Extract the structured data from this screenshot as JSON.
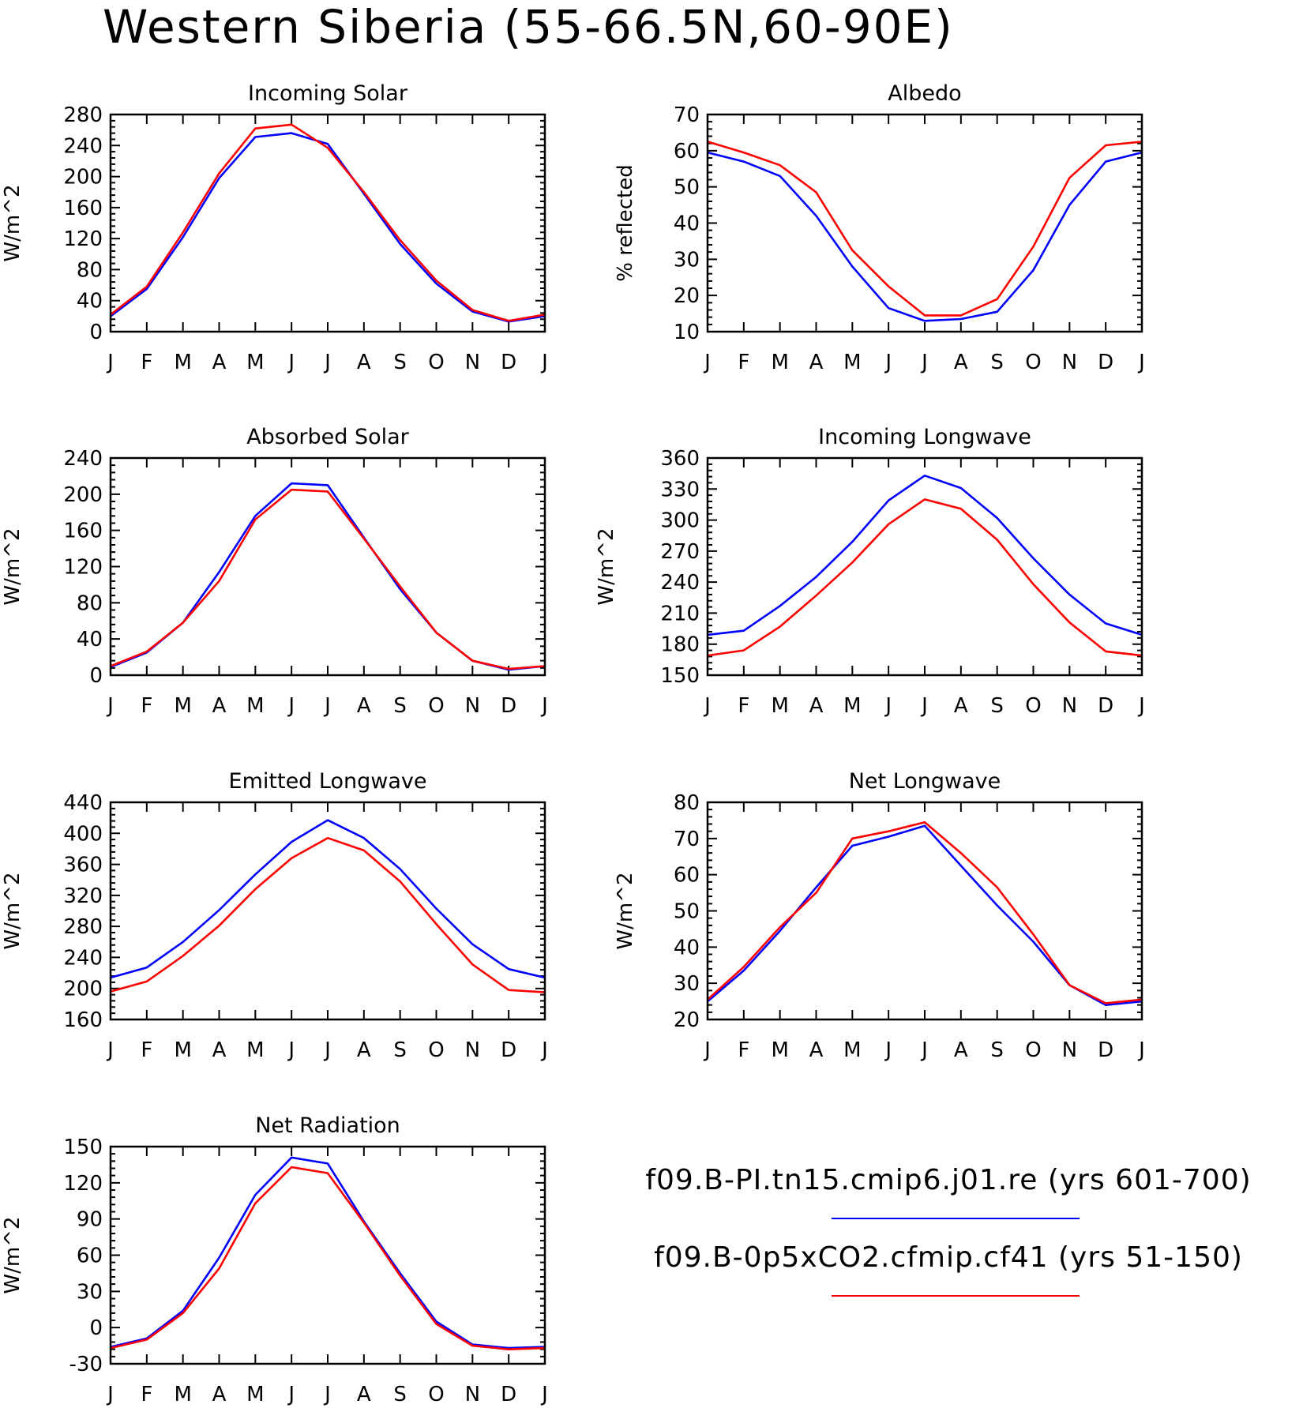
{
  "title": "Western Siberia (55-66.5N,60-90E)",
  "colors": {
    "series_pi": "#0000ff",
    "series_co2": "#ff0000",
    "axes": "#000000"
  },
  "legend": {
    "entries": [
      {
        "label": "f09.B-PI.tn15.cmip6.j01.re (yrs 601-700)",
        "color": "#0000ff"
      },
      {
        "label": "f09.B-0p5xCO2.cfmip.cf41 (yrs 51-150)",
        "color": "#ff0000"
      }
    ]
  },
  "chart_data": [
    {
      "type": "line",
      "title": "Incoming Solar",
      "ylabel": "W/m^2",
      "xlabel": "",
      "categories": [
        "J",
        "F",
        "M",
        "A",
        "M",
        "J",
        "J",
        "A",
        "S",
        "O",
        "N",
        "D",
        "J"
      ],
      "ylim": [
        0,
        280
      ],
      "yticks": [
        0,
        40,
        80,
        120,
        160,
        200,
        240,
        280
      ],
      "series": [
        {
          "color": "#0000ff",
          "values": [
            20,
            55,
            122,
            198,
            251,
            256,
            242,
            178,
            113,
            62,
            26,
            13,
            20
          ]
        },
        {
          "color": "#ff0000",
          "values": [
            22,
            58,
            128,
            204,
            262,
            267,
            237,
            180,
            118,
            66,
            28,
            14,
            22
          ]
        }
      ]
    },
    {
      "type": "line",
      "title": "Albedo",
      "ylabel": "% reflected",
      "xlabel": "",
      "categories": [
        "J",
        "F",
        "M",
        "A",
        "M",
        "J",
        "J",
        "A",
        "S",
        "O",
        "N",
        "D",
        "J"
      ],
      "ylim": [
        10,
        70
      ],
      "yticks": [
        10,
        20,
        30,
        40,
        50,
        60,
        70
      ],
      "series": [
        {
          "color": "#0000ff",
          "values": [
            59.5,
            57,
            53,
            42,
            28,
            16.5,
            13,
            13.5,
            15.5,
            27,
            45,
            57,
            59.5
          ]
        },
        {
          "color": "#ff0000",
          "values": [
            62.5,
            59.5,
            56,
            48.5,
            32.5,
            22.5,
            14.5,
            14.5,
            19,
            33.5,
            52.5,
            61.5,
            62.5
          ]
        }
      ]
    },
    {
      "type": "line",
      "title": "Absorbed Solar",
      "ylabel": "W/m^2",
      "xlabel": "",
      "categories": [
        "J",
        "F",
        "M",
        "A",
        "M",
        "J",
        "J",
        "A",
        "S",
        "O",
        "N",
        "D",
        "J"
      ],
      "ylim": [
        0,
        240
      ],
      "yticks": [
        0,
        40,
        80,
        120,
        160,
        200,
        240
      ],
      "series": [
        {
          "color": "#0000ff",
          "values": [
            9,
            25,
            58,
            114,
            176,
            212,
            210,
            152,
            95,
            47,
            16,
            6,
            10
          ]
        },
        {
          "color": "#ff0000",
          "values": [
            10,
            26,
            58,
            104,
            172,
            205,
            203,
            151,
            98,
            47,
            16,
            7,
            10
          ]
        }
      ]
    },
    {
      "type": "line",
      "title": "Incoming Longwave",
      "ylabel": "W/m^2",
      "xlabel": "",
      "categories": [
        "J",
        "F",
        "M",
        "A",
        "M",
        "J",
        "J",
        "A",
        "S",
        "O",
        "N",
        "D",
        "J"
      ],
      "ylim": [
        150,
        360
      ],
      "yticks": [
        150,
        180,
        210,
        240,
        270,
        300,
        330,
        360
      ],
      "series": [
        {
          "color": "#0000ff",
          "values": [
            189,
            193,
            217,
            245,
            279,
            319,
            343,
            331,
            302,
            263,
            228,
            200,
            189
          ]
        },
        {
          "color": "#ff0000",
          "values": [
            169,
            174,
            197,
            227,
            259,
            296,
            320,
            311,
            281,
            238,
            201,
            173,
            169
          ]
        }
      ]
    },
    {
      "type": "line",
      "title": "Emitted Longwave",
      "ylabel": "W/m^2",
      "xlabel": "",
      "categories": [
        "J",
        "F",
        "M",
        "A",
        "M",
        "J",
        "J",
        "A",
        "S",
        "O",
        "N",
        "D",
        "J"
      ],
      "ylim": [
        160,
        440
      ],
      "yticks": [
        160,
        200,
        240,
        280,
        320,
        360,
        400,
        440
      ],
      "series": [
        {
          "color": "#0000ff",
          "values": [
            214,
            227,
            260,
            301,
            347,
            389,
            417,
            394,
            354,
            303,
            257,
            225,
            214
          ]
        },
        {
          "color": "#ff0000",
          "values": [
            196,
            209,
            242,
            281,
            328,
            368,
            394,
            378,
            338,
            283,
            231,
            198,
            195
          ]
        }
      ]
    },
    {
      "type": "line",
      "title": "Net Longwave",
      "ylabel": "W/m^2",
      "xlabel": "",
      "categories": [
        "J",
        "F",
        "M",
        "A",
        "M",
        "J",
        "J",
        "A",
        "S",
        "O",
        "N",
        "D",
        "J"
      ],
      "ylim": [
        20,
        80
      ],
      "yticks": [
        20,
        30,
        40,
        50,
        60,
        70,
        80
      ],
      "series": [
        {
          "color": "#0000ff",
          "values": [
            25,
            33.5,
            44.5,
            56.5,
            68,
            70.5,
            73.5,
            62.5,
            51.5,
            41.5,
            29.5,
            24,
            25
          ]
        },
        {
          "color": "#ff0000",
          "values": [
            25.5,
            34.5,
            45.5,
            55,
            70,
            72,
            74.5,
            66,
            56.5,
            43.5,
            29.5,
            24.5,
            25.5
          ]
        }
      ]
    },
    {
      "type": "line",
      "title": "Net Radiation",
      "ylabel": "W/m^2",
      "xlabel": "",
      "categories": [
        "J",
        "F",
        "M",
        "A",
        "M",
        "J",
        "J",
        "A",
        "S",
        "O",
        "N",
        "D",
        "J"
      ],
      "ylim": [
        -30,
        150
      ],
      "yticks": [
        -30,
        0,
        30,
        60,
        90,
        120,
        150
      ],
      "series": [
        {
          "color": "#0000ff",
          "values": [
            -16,
            -9,
            14,
            58,
            110,
            141,
            136,
            88,
            45,
            5,
            -14,
            -17,
            -16
          ]
        },
        {
          "color": "#ff0000",
          "values": [
            -17,
            -10,
            12,
            49,
            103,
            133,
            128,
            87,
            43,
            3,
            -15,
            -18,
            -17
          ]
        }
      ]
    }
  ]
}
